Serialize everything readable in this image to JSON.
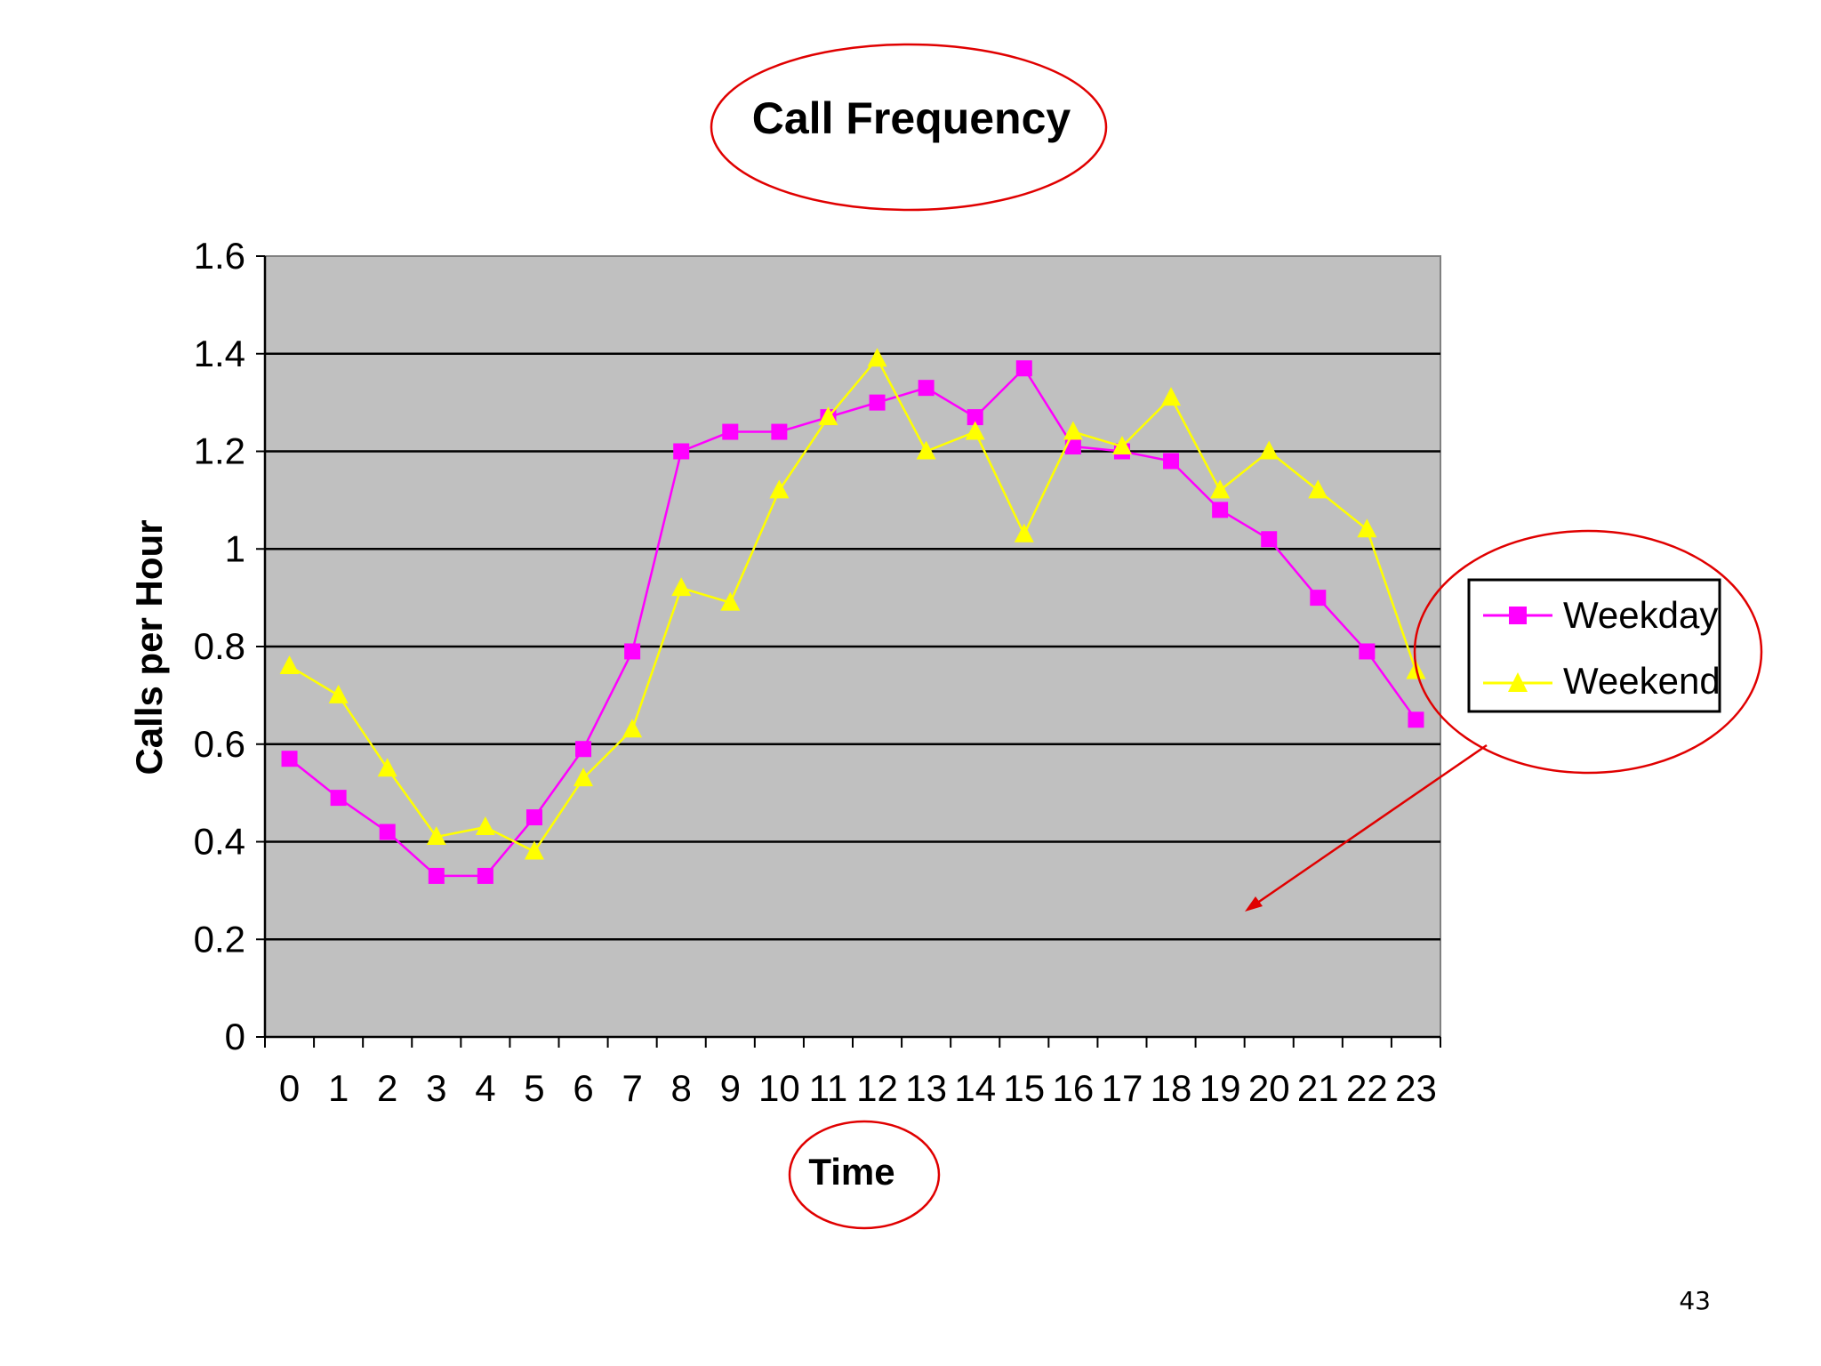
{
  "chart_data": {
    "type": "line",
    "title": "Call Frequency",
    "xlabel": "Time",
    "ylabel": "Calls per Hour",
    "categories": [
      "0",
      "1",
      "2",
      "3",
      "4",
      "5",
      "6",
      "7",
      "8",
      "9",
      "10",
      "11",
      "12",
      "13",
      "14",
      "15",
      "16",
      "17",
      "18",
      "19",
      "20",
      "21",
      "22",
      "23"
    ],
    "series": [
      {
        "name": "Weekday",
        "color": "#ff00ff",
        "marker": "square",
        "values": [
          0.57,
          0.49,
          0.42,
          0.33,
          0.33,
          0.45,
          0.59,
          0.79,
          1.2,
          1.24,
          1.24,
          1.27,
          1.3,
          1.33,
          1.27,
          1.37,
          1.21,
          1.2,
          1.18,
          1.08,
          1.02,
          0.9,
          0.79,
          0.65
        ]
      },
      {
        "name": "Weekend",
        "color": "#ffff00",
        "marker": "triangle",
        "values": [
          0.76,
          0.7,
          0.55,
          0.41,
          0.43,
          0.38,
          0.53,
          0.63,
          0.92,
          0.89,
          1.12,
          1.27,
          1.39,
          1.2,
          1.24,
          1.03,
          1.24,
          1.21,
          1.31,
          1.12,
          1.2,
          1.12,
          1.04,
          0.75
        ]
      }
    ],
    "yticks": [
      "0",
      "0.2",
      "0.4",
      "0.6",
      "0.8",
      "1",
      "1.2",
      "1.4",
      "1.6"
    ],
    "ylim": [
      0,
      1.6
    ],
    "grid": true,
    "legend_position": "right",
    "plot_background": "#c0c0c0",
    "annotation_color": "#e00000"
  },
  "page_number": "43"
}
